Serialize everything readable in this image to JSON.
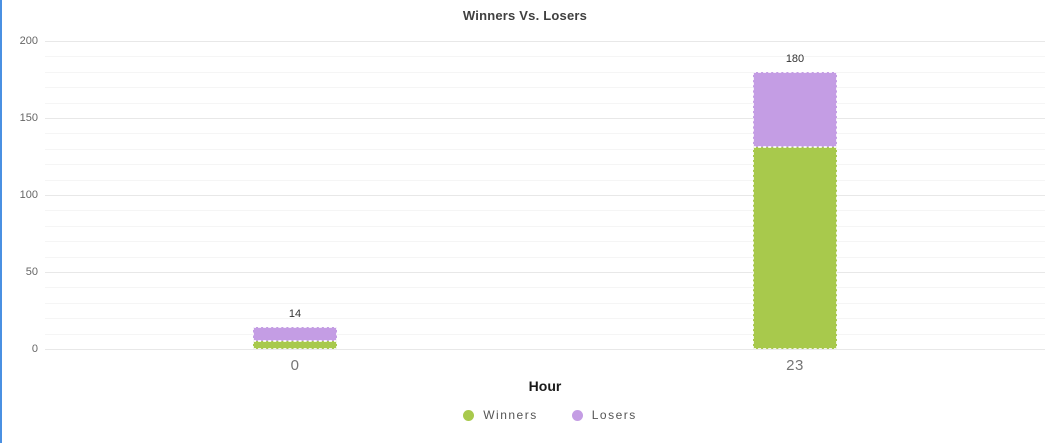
{
  "title": "Winners Vs. Losers",
  "chart_data": {
    "type": "bar",
    "stacked": true,
    "title": "Winners Vs. Losers",
    "xlabel": "Hour",
    "ylabel": "",
    "categories": [
      "0",
      "23"
    ],
    "series": [
      {
        "name": "Winners",
        "color": "#a8c94c",
        "values": [
          5,
          131
        ]
      },
      {
        "name": "Losers",
        "color": "#c49de4",
        "values": [
          9,
          49
        ]
      }
    ],
    "bar_total_labels": [
      "14",
      "180"
    ],
    "ylim": [
      0,
      200
    ],
    "yticks": [
      0,
      50,
      100,
      150,
      200
    ],
    "major_grid_step": 50,
    "minor_grid_step": 10,
    "grid": true,
    "legend_position": "bottom"
  },
  "colors": {
    "winners": "#a8c94c",
    "losers": "#c49de4",
    "left_stripe": "#4a90e2",
    "grid_major": "#e8e8e8",
    "grid_minor": "#f5f5f5"
  }
}
